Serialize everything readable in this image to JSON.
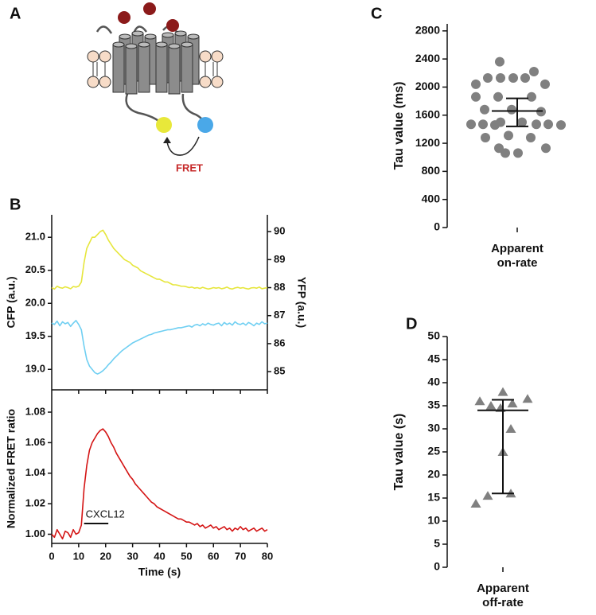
{
  "panels": {
    "a": {
      "label": "A",
      "annotation": "FRET"
    }
  },
  "chart_data": [
    {
      "type": "line",
      "panel": "B",
      "ylabel": "CFP (a.u.)",
      "y2label": "YFP (a.u.)",
      "xlim": [
        0,
        80
      ],
      "ylim": [
        18.69,
        21.34
      ],
      "y2lim": [
        84.35,
        90.6
      ],
      "yticks": [
        {
          "value": 19,
          "label": "19.0"
        },
        19.5,
        {
          "value": 20,
          "label": "20.0"
        },
        20.5,
        {
          "value": 21,
          "label": "21.0"
        }
      ],
      "y2ticks": [
        85,
        86,
        87,
        88,
        89,
        90
      ],
      "x": [
        0,
        1,
        2,
        3,
        4,
        5,
        6,
        7,
        8,
        9,
        10,
        11,
        12,
        13,
        14,
        15,
        16,
        17,
        18,
        19,
        20,
        21,
        22,
        23,
        24,
        25,
        26,
        27,
        28,
        29,
        30,
        31,
        32,
        33,
        34,
        35,
        36,
        37,
        38,
        39,
        40,
        41,
        42,
        43,
        44,
        45,
        46,
        47,
        48,
        49,
        50,
        51,
        52,
        53,
        54,
        55,
        56,
        57,
        58,
        59,
        60,
        61,
        62,
        63,
        64,
        65,
        66,
        67,
        68,
        69,
        70,
        71,
        72,
        73,
        74,
        75,
        76,
        77,
        78,
        79,
        80
      ],
      "series": [
        {
          "name": "CFP",
          "color": "#6fcff2",
          "values": [
            19.7,
            19.68,
            19.73,
            19.66,
            19.72,
            19.69,
            19.71,
            19.65,
            19.7,
            19.74,
            19.68,
            19.6,
            19.35,
            19.15,
            19.05,
            19.0,
            18.95,
            18.93,
            18.95,
            18.98,
            19.02,
            19.07,
            19.11,
            19.16,
            19.2,
            19.24,
            19.28,
            19.31,
            19.34,
            19.37,
            19.4,
            19.42,
            19.44,
            19.46,
            19.48,
            19.5,
            19.52,
            19.53,
            19.55,
            19.56,
            19.57,
            19.58,
            19.59,
            19.6,
            19.6,
            19.61,
            19.62,
            19.63,
            19.63,
            19.64,
            19.65,
            19.66,
            19.64,
            19.67,
            19.68,
            19.66,
            19.69,
            19.67,
            19.7,
            19.68,
            19.67,
            19.69,
            19.7,
            19.66,
            19.71,
            19.68,
            19.7,
            19.67,
            19.72,
            19.69,
            19.68,
            19.7,
            19.67,
            19.71,
            19.69,
            19.66,
            19.7,
            19.68,
            19.72,
            19.69,
            19.7
          ]
        },
        {
          "name": "YFP",
          "color": "#e6e63c",
          "axis": "y2",
          "values": [
            88.0,
            87.95,
            88.05,
            88.0,
            87.98,
            88.03,
            88.0,
            87.96,
            88.04,
            88.02,
            88.05,
            88.2,
            88.9,
            89.4,
            89.6,
            89.8,
            89.8,
            89.9,
            90.0,
            90.05,
            89.9,
            89.7,
            89.55,
            89.4,
            89.3,
            89.2,
            89.1,
            89.0,
            88.95,
            88.9,
            88.8,
            88.75,
            88.7,
            88.6,
            88.55,
            88.5,
            88.45,
            88.4,
            88.35,
            88.3,
            88.3,
            88.25,
            88.2,
            88.2,
            88.15,
            88.1,
            88.1,
            88.08,
            88.05,
            88.05,
            88.03,
            88.0,
            88.02,
            87.98,
            88.0,
            87.97,
            88.01,
            87.98,
            87.95,
            87.97,
            88.0,
            87.98,
            88.0,
            87.96,
            87.98,
            88.02,
            87.97,
            87.95,
            87.99,
            88.01,
            87.98,
            88.0,
            87.97,
            87.95,
            87.99,
            88.0,
            87.98,
            88.02,
            87.96,
            87.98,
            88.0
          ]
        }
      ]
    },
    {
      "type": "line",
      "xlabel": "Time (s)",
      "ylabel": "Normalized FRET ratio",
      "xlim": [
        0,
        80
      ],
      "ylim": [
        0.994,
        1.092
      ],
      "xticks": [
        0,
        10,
        20,
        30,
        40,
        50,
        60,
        70,
        80
      ],
      "yticks": [
        {
          "value": 1,
          "label": "1.00"
        },
        1.02,
        1.04,
        1.06,
        1.08
      ],
      "stimulus": {
        "label": "CXCL12",
        "start": 12,
        "end": 21
      },
      "x": [
        0,
        1,
        2,
        3,
        4,
        5,
        6,
        7,
        8,
        9,
        10,
        11,
        12,
        13,
        14,
        15,
        16,
        17,
        18,
        19,
        20,
        21,
        22,
        23,
        24,
        25,
        26,
        27,
        28,
        29,
        30,
        31,
        32,
        33,
        34,
        35,
        36,
        37,
        38,
        39,
        40,
        41,
        42,
        43,
        44,
        45,
        46,
        47,
        48,
        49,
        50,
        51,
        52,
        53,
        54,
        55,
        56,
        57,
        58,
        59,
        60,
        61,
        62,
        63,
        64,
        65,
        66,
        67,
        68,
        69,
        70,
        71,
        72,
        73,
        74,
        75,
        76,
        77,
        78,
        79,
        80
      ],
      "series": [
        {
          "name": "FRET ratio",
          "color": "#d41414",
          "values": [
            1.0,
            0.998,
            1.003,
            1.0,
            0.997,
            1.002,
            1.001,
            0.998,
            1.003,
            1.0,
            1.001,
            1.006,
            1.03,
            1.045,
            1.055,
            1.06,
            1.063,
            1.066,
            1.068,
            1.069,
            1.067,
            1.064,
            1.06,
            1.057,
            1.053,
            1.05,
            1.047,
            1.044,
            1.041,
            1.038,
            1.036,
            1.033,
            1.031,
            1.029,
            1.027,
            1.025,
            1.023,
            1.021,
            1.02,
            1.018,
            1.017,
            1.016,
            1.015,
            1.014,
            1.013,
            1.012,
            1.011,
            1.01,
            1.01,
            1.009,
            1.008,
            1.008,
            1.007,
            1.006,
            1.007,
            1.005,
            1.006,
            1.004,
            1.005,
            1.006,
            1.004,
            1.005,
            1.003,
            1.004,
            1.005,
            1.003,
            1.004,
            1.002,
            1.004,
            1.003,
            1.005,
            1.003,
            1.004,
            1.002,
            1.003,
            1.004,
            1.002,
            1.003,
            1.004,
            1.002,
            1.003
          ]
        }
      ]
    },
    {
      "type": "scatter",
      "panel": "C",
      "ylabel": "Tau value (ms)",
      "category": "Apparent on-rate",
      "marker": "circle",
      "color": "#808080",
      "ylim": [
        0,
        2900
      ],
      "yticks": [
        0,
        400,
        800,
        1200,
        1600,
        2000,
        2400,
        2800
      ],
      "values": [
        2360,
        2220,
        2130,
        2130,
        2130,
        2130,
        2040,
        2040,
        1860,
        1860,
        1860,
        1680,
        1680,
        1650,
        1500,
        1500,
        1470,
        1470,
        1460,
        1460,
        1470,
        1470,
        1310,
        1280,
        1280,
        1130,
        1130,
        1060,
        1060
      ],
      "error_bar": {
        "center": 1660,
        "low": 1440,
        "high": 1840
      }
    },
    {
      "type": "scatter",
      "panel": "D",
      "ylabel": "Tau value (s)",
      "category": "Apparent off-rate",
      "marker": "triangle",
      "color": "#808080",
      "ylim": [
        0,
        50
      ],
      "yticks": [
        0,
        5,
        10,
        15,
        20,
        25,
        30,
        35,
        40,
        45,
        50
      ],
      "values": [
        36,
        38,
        36.5,
        35,
        35.5,
        34.5,
        30,
        25,
        16,
        15.5,
        13.8
      ],
      "error_bar": {
        "center": 34,
        "low": 16,
        "high": 36.3
      }
    }
  ]
}
